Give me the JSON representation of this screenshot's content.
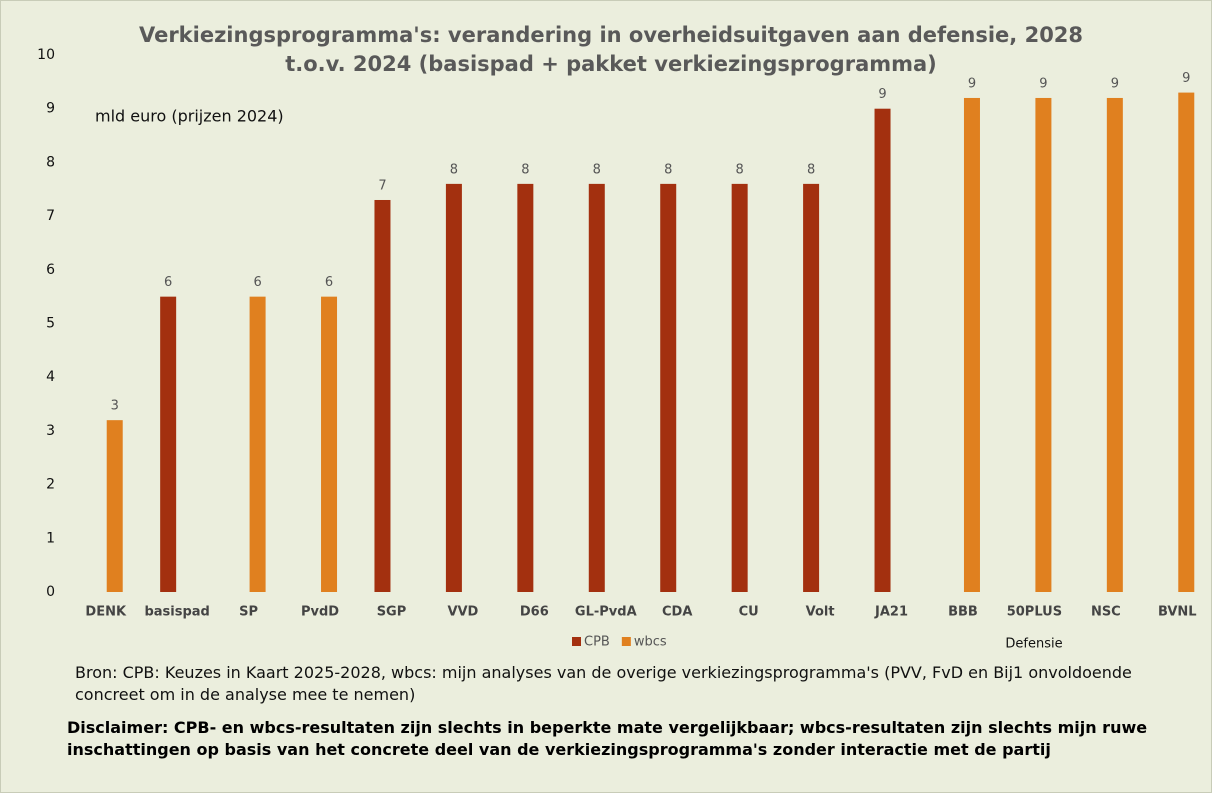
{
  "chart_data": {
    "type": "bar",
    "title": "Verkiezingsprogramma's: verandering in overheidsuitgaven aan defensie, 2028 t.o.v. 2024 (basispad + pakket verkiezingsprogramma)",
    "y_label": "mld euro (prijzen 2024)",
    "categories": [
      "DENK",
      "basispad",
      "SP",
      "PvdD",
      "SGP",
      "VVD",
      "D66",
      "GL-PvdA",
      "CDA",
      "CU",
      "Volt",
      "JA21",
      "BBB",
      "50PLUS",
      "NSC",
      "BVNL"
    ],
    "series": [
      {
        "name": "CPB",
        "color": "#a3300f",
        "values": [
          null,
          5.5,
          null,
          null,
          7.3,
          7.6,
          7.6,
          7.6,
          7.6,
          7.6,
          7.6,
          9.0,
          null,
          null,
          null,
          null
        ],
        "value_labels": [
          null,
          "6",
          null,
          null,
          "7",
          "8",
          "8",
          "8",
          "8",
          "8",
          "8",
          "9",
          null,
          null,
          null,
          null
        ]
      },
      {
        "name": "wbcs",
        "color": "#e0801f",
        "values": [
          3.2,
          null,
          5.5,
          5.5,
          null,
          null,
          null,
          null,
          null,
          null,
          null,
          null,
          9.2,
          9.2,
          9.2,
          9.3
        ],
        "value_labels": [
          "3",
          null,
          "6",
          "6",
          null,
          null,
          null,
          null,
          null,
          null,
          null,
          null,
          "9",
          "9",
          "9",
          "9"
        ]
      }
    ],
    "ylim": [
      0,
      10
    ],
    "yticks": [
      0,
      1,
      2,
      3,
      4,
      5,
      6,
      7,
      8,
      9,
      10
    ],
    "grid": false,
    "legend": "bottom",
    "annotation": "Defensie",
    "source": "Bron: CPB: Keuzes in Kaart 2025-2028, wbcs: mijn analyses van de overige verkiezingsprogramma's (PVV, FvD en Bij1 onvoldoende concreet om in de analyse mee te nemen)",
    "disclaimer": "Disclaimer: CPB- en wbcs-resultaten zijn slechts in beperkte mate vergelijkbaar; wbcs-resultaten zijn slechts mijn ruwe inschattingen op basis van het concrete deel van de verkiezingsprogramma's zonder interactie met de partij"
  }
}
